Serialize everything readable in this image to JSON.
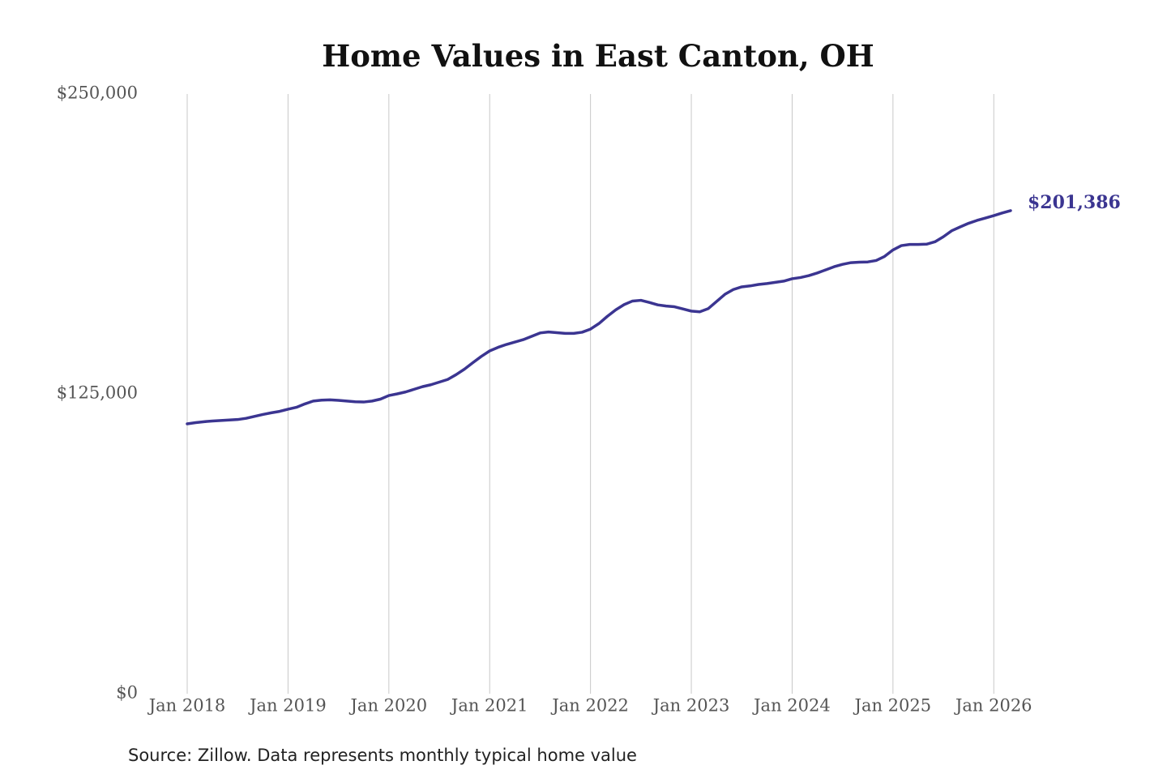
{
  "chart_data": {
    "type": "line",
    "title": "Home Values in East Canton, OH",
    "source": "Source: Zillow. Data represents monthly typical home value",
    "x": [
      "2018-01",
      "2018-02",
      "2018-03",
      "2018-04",
      "2018-05",
      "2018-06",
      "2018-07",
      "2018-08",
      "2018-09",
      "2018-10",
      "2018-11",
      "2018-12",
      "2019-01",
      "2019-02",
      "2019-03",
      "2019-04",
      "2019-05",
      "2019-06",
      "2019-07",
      "2019-08",
      "2019-09",
      "2019-10",
      "2019-11",
      "2019-12",
      "2020-01",
      "2020-02",
      "2020-03",
      "2020-04",
      "2020-05",
      "2020-06",
      "2020-07",
      "2020-08",
      "2020-09",
      "2020-10",
      "2020-11",
      "2020-12",
      "2021-01",
      "2021-02",
      "2021-03",
      "2021-04",
      "2021-05",
      "2021-06",
      "2021-07",
      "2021-08",
      "2021-09",
      "2021-10",
      "2021-11",
      "2021-12",
      "2022-01",
      "2022-02",
      "2022-03",
      "2022-04",
      "2022-05",
      "2022-06",
      "2022-07",
      "2022-08",
      "2022-09",
      "2022-10",
      "2022-11",
      "2022-12",
      "2023-01",
      "2023-02",
      "2023-03",
      "2023-04",
      "2023-05",
      "2023-06",
      "2023-07",
      "2023-08",
      "2023-09",
      "2023-10",
      "2023-11",
      "2023-12",
      "2024-01",
      "2024-02",
      "2024-03",
      "2024-04",
      "2024-05",
      "2024-06",
      "2024-07",
      "2024-08",
      "2024-09",
      "2024-10",
      "2024-11",
      "2024-12",
      "2025-01",
      "2025-02",
      "2025-03",
      "2025-04",
      "2025-05",
      "2025-06",
      "2025-07",
      "2025-08",
      "2025-09",
      "2025-10",
      "2025-11",
      "2025-12",
      "2026-01",
      "2026-02",
      "2026-03"
    ],
    "series": [
      {
        "name": "Home value",
        "color": "#3b3591",
        "values": [
          112500,
          113000,
          113400,
          113700,
          113900,
          114100,
          114300,
          114800,
          115600,
          116400,
          117100,
          117700,
          118600,
          119400,
          120800,
          122000,
          122400,
          122500,
          122300,
          122000,
          121700,
          121600,
          122000,
          122800,
          124300,
          125000,
          125800,
          126900,
          128000,
          128800,
          129900,
          131000,
          133000,
          135300,
          138000,
          140600,
          142900,
          144400,
          145600,
          146600,
          147600,
          149000,
          150400,
          150800,
          150500,
          150200,
          150200,
          150700,
          152000,
          154300,
          157300,
          160000,
          162200,
          163700,
          164000,
          163100,
          162100,
          161600,
          161300,
          160400,
          159500,
          159200,
          160500,
          163500,
          166500,
          168500,
          169600,
          170000,
          170600,
          171000,
          171500,
          172000,
          173000,
          173500,
          174300,
          175400,
          176700,
          178000,
          179000,
          179700,
          179900,
          180000,
          180600,
          182300,
          185000,
          186800,
          187300,
          187300,
          187400,
          188400,
          190500,
          193000,
          194600,
          196100,
          197300,
          198300,
          199300,
          200400,
          201386
        ],
        "value_labels": [
          null,
          null,
          null,
          null,
          null,
          null,
          null,
          null,
          null,
          null,
          null,
          null,
          null,
          null,
          null,
          null,
          null,
          null,
          null,
          null,
          null,
          null,
          null,
          null,
          null,
          null,
          null,
          null,
          null,
          null,
          null,
          null,
          null,
          null,
          null,
          null,
          null,
          null,
          null,
          null,
          null,
          null,
          null,
          null,
          null,
          null,
          null,
          null,
          null,
          null,
          null,
          null,
          null,
          null,
          null,
          null,
          null,
          null,
          null,
          null,
          null,
          null,
          null,
          null,
          null,
          null,
          null,
          null,
          null,
          null,
          null,
          null,
          null,
          null,
          null,
          null,
          null,
          null,
          null,
          null,
          null,
          null,
          null,
          null,
          null,
          null,
          null,
          null,
          null,
          null,
          null,
          null,
          null,
          null,
          null,
          null,
          null,
          null,
          "$201,386"
        ]
      }
    ],
    "xlim": [
      "2018-01",
      "2026-03"
    ],
    "xticks": [
      {
        "value": "2018-01",
        "label": "Jan 2018"
      },
      {
        "value": "2019-01",
        "label": "Jan 2019"
      },
      {
        "value": "2020-01",
        "label": "Jan 2020"
      },
      {
        "value": "2021-01",
        "label": "Jan 2021"
      },
      {
        "value": "2022-01",
        "label": "Jan 2022"
      },
      {
        "value": "2023-01",
        "label": "Jan 2023"
      },
      {
        "value": "2024-01",
        "label": "Jan 2024"
      },
      {
        "value": "2025-01",
        "label": "Jan 2025"
      },
      {
        "value": "2026-01",
        "label": "Jan 2026"
      }
    ],
    "ylim": [
      0,
      250000
    ],
    "yticks": [
      {
        "value": 0,
        "label": "$0"
      },
      {
        "value": 125000,
        "label": "$125,000"
      },
      {
        "value": 250000,
        "label": "$250,000"
      }
    ],
    "grid": true
  }
}
